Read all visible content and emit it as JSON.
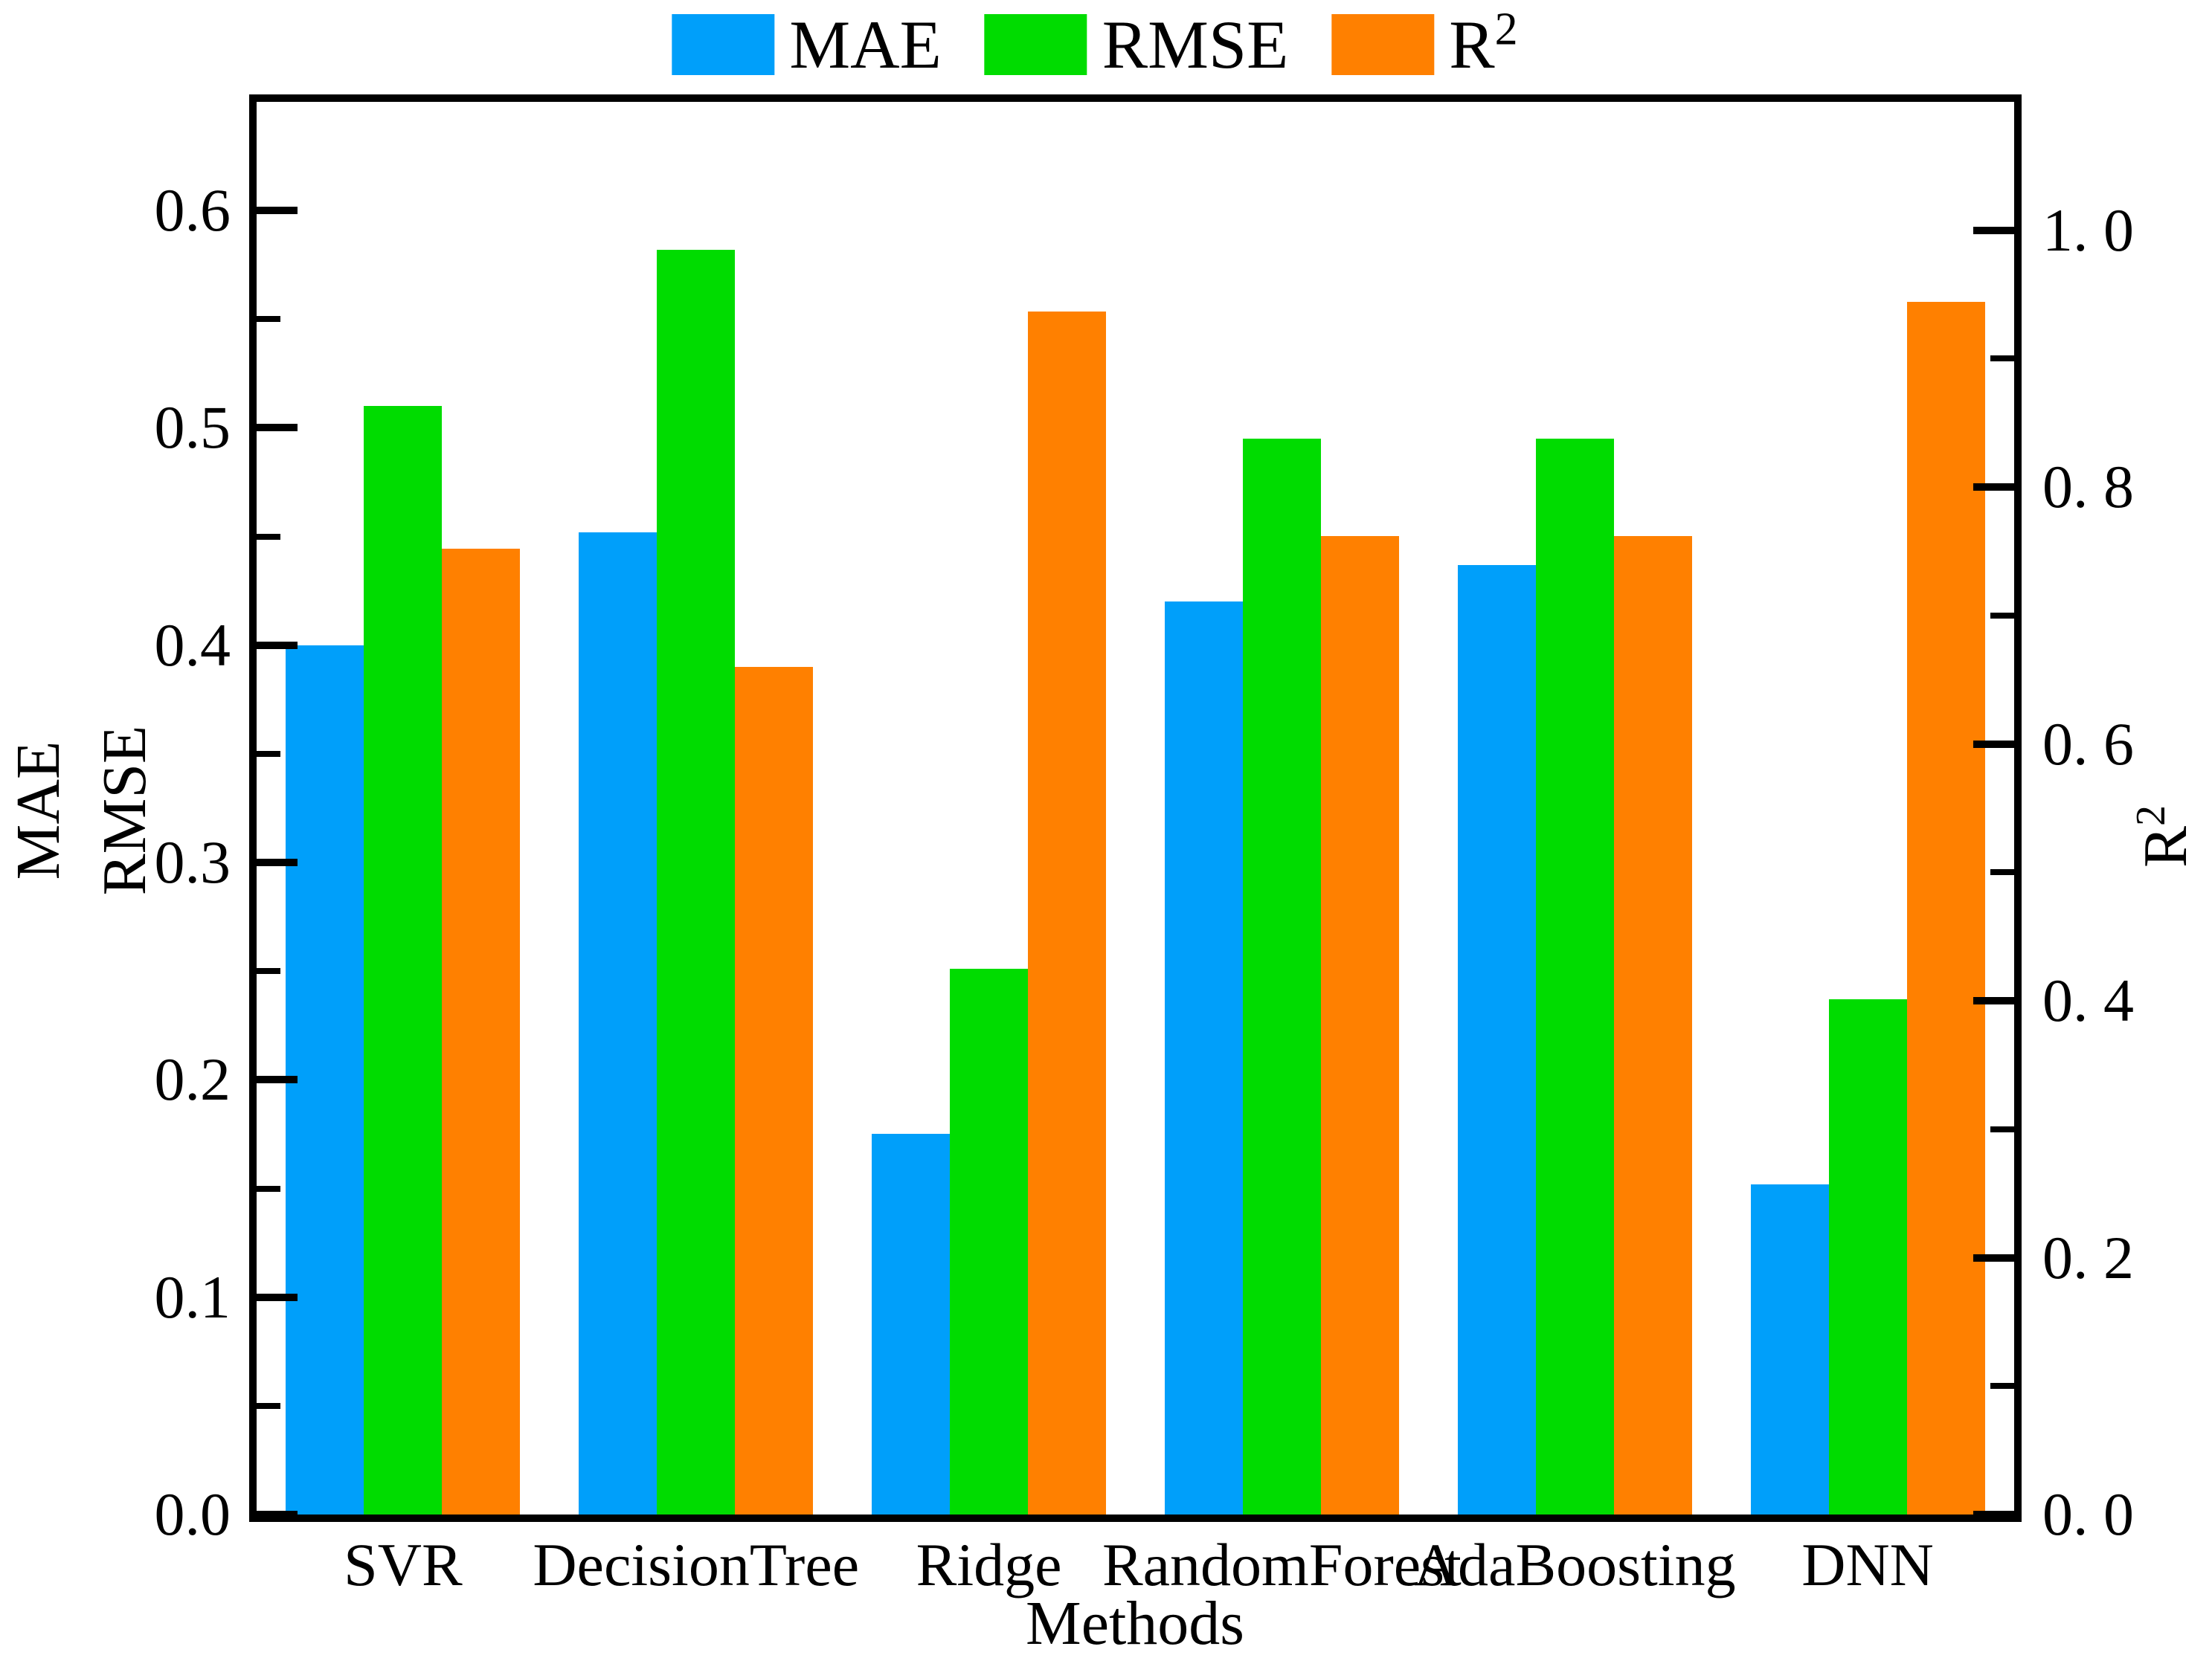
{
  "chart_data": {
    "type": "bar",
    "title": "",
    "categories": [
      "SVR",
      "DecisionTree",
      "Ridge",
      "RandomForest",
      "AdaBoosting",
      "DNN"
    ],
    "series": [
      {
        "name": "MAE",
        "axis": "left",
        "color": "#009FFA",
        "values": [
          0.4,
          0.452,
          0.175,
          0.42,
          0.437,
          0.152
        ]
      },
      {
        "name": "RMSE",
        "axis": "left",
        "color": "#00DC00",
        "values": [
          0.51,
          0.582,
          0.251,
          0.495,
          0.495,
          0.237
        ]
      },
      {
        "name": "R2",
        "axis": "right",
        "color": "#FF8000",
        "values": [
          0.752,
          0.66,
          0.937,
          0.762,
          0.762,
          0.944
        ]
      }
    ],
    "xlabel": "Methods",
    "left_axis": {
      "title_lines": [
        "MAE",
        "RMSE"
      ],
      "min": 0,
      "max": 0.65,
      "major_ticks": [
        0.0,
        0.1,
        0.2,
        0.3,
        0.4,
        0.5,
        0.6
      ],
      "tick_labels": [
        "0.0",
        "0.1",
        "0.2",
        "0.3",
        "0.4",
        "0.5",
        "0.6"
      ],
      "minor_step": 0.05
    },
    "right_axis": {
      "title_base": "R",
      "title_sup": "2",
      "min": 0,
      "max": 1.1,
      "major_ticks": [
        0.0,
        0.2,
        0.4,
        0.6,
        0.8,
        1.0
      ],
      "tick_labels": [
        "0. 0",
        "0. 2",
        "0. 4",
        "0. 6",
        "0. 8",
        "1. 0"
      ],
      "minor_step": 0.1
    },
    "legend": {
      "position": "top",
      "items": [
        {
          "label": "MAE",
          "sup": ""
        },
        {
          "label": "RMSE",
          "sup": ""
        },
        {
          "label": "R",
          "sup": "2"
        }
      ]
    },
    "grid": false,
    "background": "#ffffff"
  }
}
